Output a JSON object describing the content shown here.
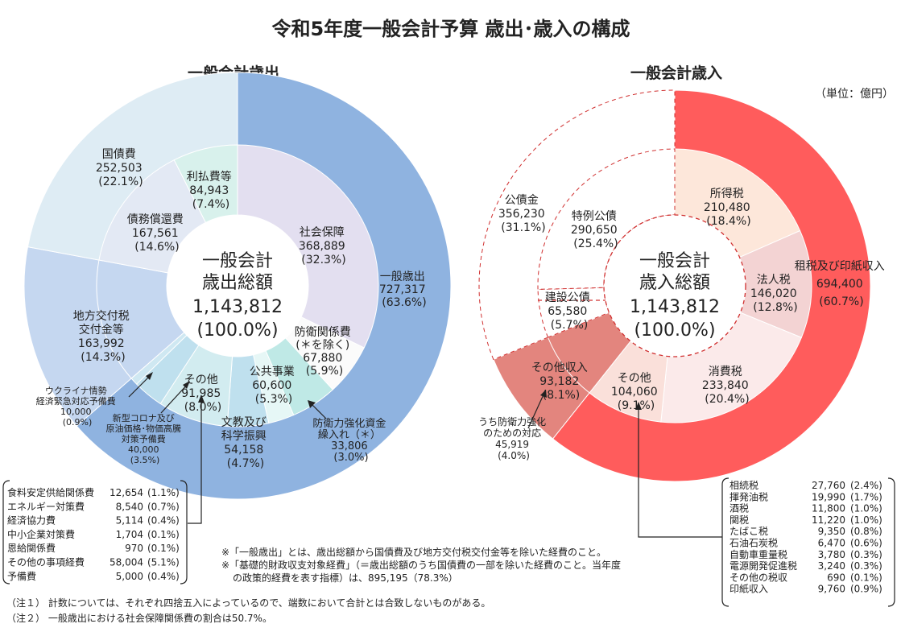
{
  "title": "令和5年度一般会計予算 歳出･歳入の構成",
  "unit": "（単位：億円）",
  "chart_data": [
    {
      "type": "pie",
      "title": "一般会計歳出",
      "center": [
        "一般会計",
        "歳出総額",
        "1,143,812",
        "(100.0%)"
      ],
      "total": 1143812,
      "outer": [
        {
          "name": "一般歳出",
          "value": 727317,
          "pct": "(63.6%)",
          "color": "#8fb3e0"
        },
        {
          "name": "地方交付税交付金等",
          "value": 163992,
          "pct": "(14.3%)",
          "color": "#c5d7f0"
        },
        {
          "name": "国債費",
          "value": 252503,
          "pct": "(22.1%)",
          "color": "#deecf4"
        }
      ],
      "inner": [
        {
          "name": "社会保障",
          "value": 368889,
          "pct": "(32.3%)",
          "color": "#e3dff0"
        },
        {
          "name": "防衛関係費(＊を除く)",
          "value": 67880,
          "pct": "(5.9%)",
          "color": "#fbfbfb"
        },
        {
          "name": "公共事業",
          "value": 60600,
          "pct": "(5.3%)",
          "color": "#bfe9e6"
        },
        {
          "name": "防衛力強化資金繰入れ(＊)",
          "value": 33806,
          "pct": "(3.0%)",
          "color": "#e6f7f6"
        },
        {
          "name": "文教及び科学振興",
          "value": 54158,
          "pct": "(4.7%)",
          "color": "#bfe0ee"
        },
        {
          "name": "その他",
          "value": 91985,
          "pct": "(8.0%)",
          "color": "#d2ecf0"
        },
        {
          "name": "新型コロナ及び原油価格･物価高騰対策予備費",
          "value": 40000,
          "pct": "(3.5%)",
          "color": "#bfe0ee"
        },
        {
          "name": "ウクライナ情勢経済緊急対応予備費",
          "value": 10000,
          "pct": "(0.9%)",
          "color": "#cfe8f2"
        },
        {
          "name": "地方交付税交付金等",
          "value": 163992,
          "pct": "(14.3%)",
          "color": "#c5d7f0"
        },
        {
          "name": "債務償還費",
          "value": 167561,
          "pct": "(14.6%)",
          "color": "#e3e9f4"
        },
        {
          "name": "利払費等",
          "value": 84943,
          "pct": "(7.4%)",
          "color": "#d8f1ec"
        }
      ],
      "labels": {
        "ippan_saishutsu": [
          "一般歳出",
          "727,317",
          "(63.6%)"
        ],
        "shakai_hosho": [
          "社会保障",
          "368,889",
          "(32.3%)"
        ],
        "kokusaihi": [
          "国債費",
          "252,503",
          "(22.1%)"
        ],
        "saimu_shokan": [
          "債務償還費",
          "167,561",
          "(14.6%)"
        ],
        "haraihi": [
          "利払費等",
          "84,943",
          "(7.4%)"
        ],
        "chiho": [
          "地方交付税",
          "交付金等",
          "163,992",
          "(14.3%)"
        ],
        "boei": [
          "防衛関係費",
          "(＊を除く)",
          "67,880",
          "(5.9%)"
        ],
        "kokyo": [
          "公共事業",
          "60,600",
          "(5.3%)"
        ],
        "sonota": [
          "その他",
          "91,985",
          "(8.0%)"
        ],
        "bunkyo": [
          "文教及び",
          "科学振興",
          "54,158",
          "(4.7%)"
        ],
        "boei_kyoka": [
          "防衛力強化資金",
          "繰入れ（＊）",
          "33,806",
          "(3.0%)"
        ],
        "ukraine": [
          "ウクライナ情勢",
          "経済緊急対応予備費",
          "10,000",
          "(0.9%)"
        ],
        "corona": [
          "新型コロナ及び",
          "原油価格･物価高騰",
          "対策予備費",
          "40,000",
          "(3.5%)"
        ]
      },
      "breakdown": [
        {
          "name": "食料安定供給関係費",
          "value": "12,654",
          "pct": "(1.1%)"
        },
        {
          "name": "エネルギー対策費",
          "value": "8,540",
          "pct": "(0.7%)"
        },
        {
          "name": "経済協力費",
          "value": "5,114",
          "pct": "(0.4%)"
        },
        {
          "name": "中小企業対策費",
          "value": "1,704",
          "pct": "(0.1%)"
        },
        {
          "name": "恩給関係費",
          "value": "970",
          "pct": "(0.1%)"
        },
        {
          "name": "その他の事項経費",
          "value": "58,004",
          "pct": "(5.1%)"
        },
        {
          "name": "予備費",
          "value": "5,000",
          "pct": "(0.4%)"
        }
      ]
    },
    {
      "type": "pie",
      "title": "一般会計歳入",
      "center": [
        "一般会計",
        "歳入総額",
        "1,143,812",
        "(100.0%)"
      ],
      "total": 1143812,
      "outer": [
        {
          "name": "租税及び印紙収入",
          "value": 694400,
          "pct": "(60.7%)",
          "color": "#ff5c5c"
        },
        {
          "name": "その他収入",
          "value": 93182,
          "pct": "(8.1%)",
          "color": "#e3857e"
        },
        {
          "name": "公債金",
          "value": 356230,
          "pct": "(31.1%)",
          "color": "#ffffff"
        }
      ],
      "inner": [
        {
          "name": "所得税",
          "value": 210480,
          "pct": "(18.4%)",
          "color": "#fde7da"
        },
        {
          "name": "法人税",
          "value": 146020,
          "pct": "(12.8%)",
          "color": "#f3d3d3"
        },
        {
          "name": "消費税",
          "value": 233840,
          "pct": "(20.4%)",
          "color": "#fbeaea"
        },
        {
          "name": "その他",
          "value": 104060,
          "pct": "(9.1%)",
          "color": "#fae0da"
        },
        {
          "name": "その他収入",
          "value": 93182,
          "pct": "(8.1%)",
          "color": "#e3857e"
        },
        {
          "name": "建設公債",
          "value": 65580,
          "pct": "(5.7%)",
          "color": "#ffffff"
        },
        {
          "name": "特例公債",
          "value": 290650,
          "pct": "(25.4%)",
          "color": "#ffffff"
        }
      ],
      "labels": {
        "sozei": [
          "租税及び印紙収入",
          "694,400",
          "(60.7%)"
        ],
        "shotoku": [
          "所得税",
          "210,480",
          "(18.4%)"
        ],
        "hojin": [
          "法人税",
          "146,020",
          "(12.8%)"
        ],
        "shohi": [
          "消費税",
          "233,840",
          "(20.4%)"
        ],
        "sonota": [
          "その他",
          "104,060",
          "(9.1%)"
        ],
        "sonota_shunyu": [
          "その他収入",
          "93,182",
          "(8.1%)"
        ],
        "kosaikin": [
          "公債金",
          "356,230",
          "(31.1%)"
        ],
        "tokurei": [
          "特例公債",
          "290,650",
          "(25.4%)"
        ],
        "kensetsu": [
          "建設公債",
          "65,580",
          "(5.7%)"
        ],
        "ukraine_bouei": [
          "うち防衛力強化",
          "のための対応",
          "45,919",
          "(4.0%)"
        ]
      },
      "breakdown": [
        {
          "name": "相続税",
          "value": "27,760",
          "pct": "(2.4%)"
        },
        {
          "name": "揮発油税",
          "value": "19,990",
          "pct": "(1.7%)"
        },
        {
          "name": "酒税",
          "value": "11,800",
          "pct": "(1.0%)"
        },
        {
          "name": "関税",
          "value": "11,220",
          "pct": "(1.0%)"
        },
        {
          "name": "たばこ税",
          "value": "9,350",
          "pct": "(0.8%)"
        },
        {
          "name": "石油石炭税",
          "value": "6,470",
          "pct": "(0.6%)"
        },
        {
          "name": "自動車重量税",
          "value": "3,780",
          "pct": "(0.3%)"
        },
        {
          "name": "電源開発促進税",
          "value": "3,240",
          "pct": "(0.3%)"
        },
        {
          "name": "その他の税収",
          "value": "690",
          "pct": "(0.1%)"
        },
        {
          "name": "印紙収入",
          "value": "9,760",
          "pct": "(0.9%)"
        }
      ]
    }
  ],
  "footnotes": {
    "kome1": "※「一般歳出」とは、歳出総額から国債費及び地方交付税交付金等を除いた経費のこと。",
    "kome2a": "※「基礎的財政収支対象経費」（＝歳出総額のうち国債費の一部を除いた経費のこと。当年度",
    "kome2b": "の政策的経費を表す指標）は、895,195（78.3%）",
    "chu1": "（注１） 計数については、それぞれ四捨五入によっているので、端数において合計とは合致しないものがある。",
    "chu2": "（注２） 一般歳出における社会保障関係費の割合は50.7%。"
  }
}
